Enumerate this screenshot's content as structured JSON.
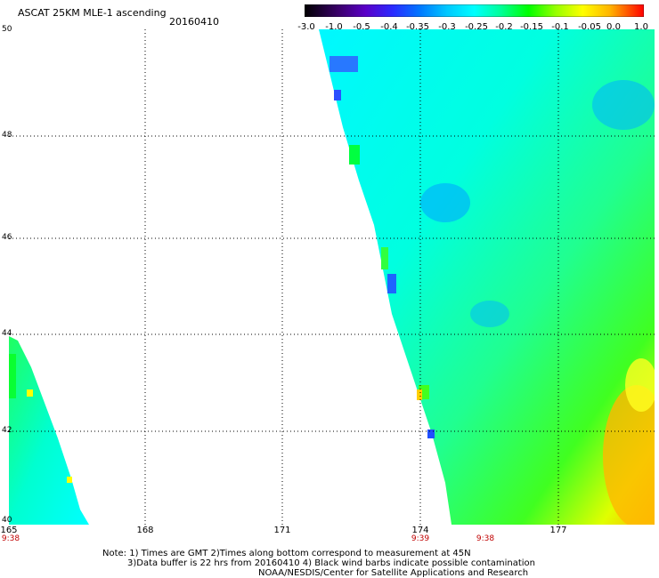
{
  "title": "ASCAT 25KM MLE-1 ascending",
  "date": "20160410",
  "colorbar": {
    "labels": [
      "-3.0",
      "-1.0",
      "-0.5",
      "-0.4",
      "-0.35",
      "-0.3",
      "-0.25",
      "-0.2",
      "-0.15",
      "-0.1",
      "-0.05",
      "0.0",
      "1.0"
    ],
    "colors": [
      "#000000",
      "#3a006a",
      "#5a00c8",
      "#2a2aff",
      "#0078ff",
      "#00c8ff",
      "#00ffff",
      "#00ff96",
      "#00ff00",
      "#96ff00",
      "#ffff00",
      "#ffb400",
      "#ff0000"
    ]
  },
  "map": {
    "lat_labels": [
      "50",
      "48",
      "46",
      "44",
      "42",
      "40"
    ],
    "lon_labels": [
      "165",
      "168",
      "171",
      "174",
      "177"
    ],
    "time_labels": [
      "9:38",
      "9:39",
      "9:38"
    ]
  },
  "notes": {
    "line1": "Note: 1) Times are GMT 2)Times along bottom correspond to measurement at 45N",
    "line2": "3)Data buffer is 22 hrs from 20160410 4) Black wind barbs indicate possible contamination",
    "line3": "NOAA/NESDIS/Center for Satellite Applications and Research"
  }
}
